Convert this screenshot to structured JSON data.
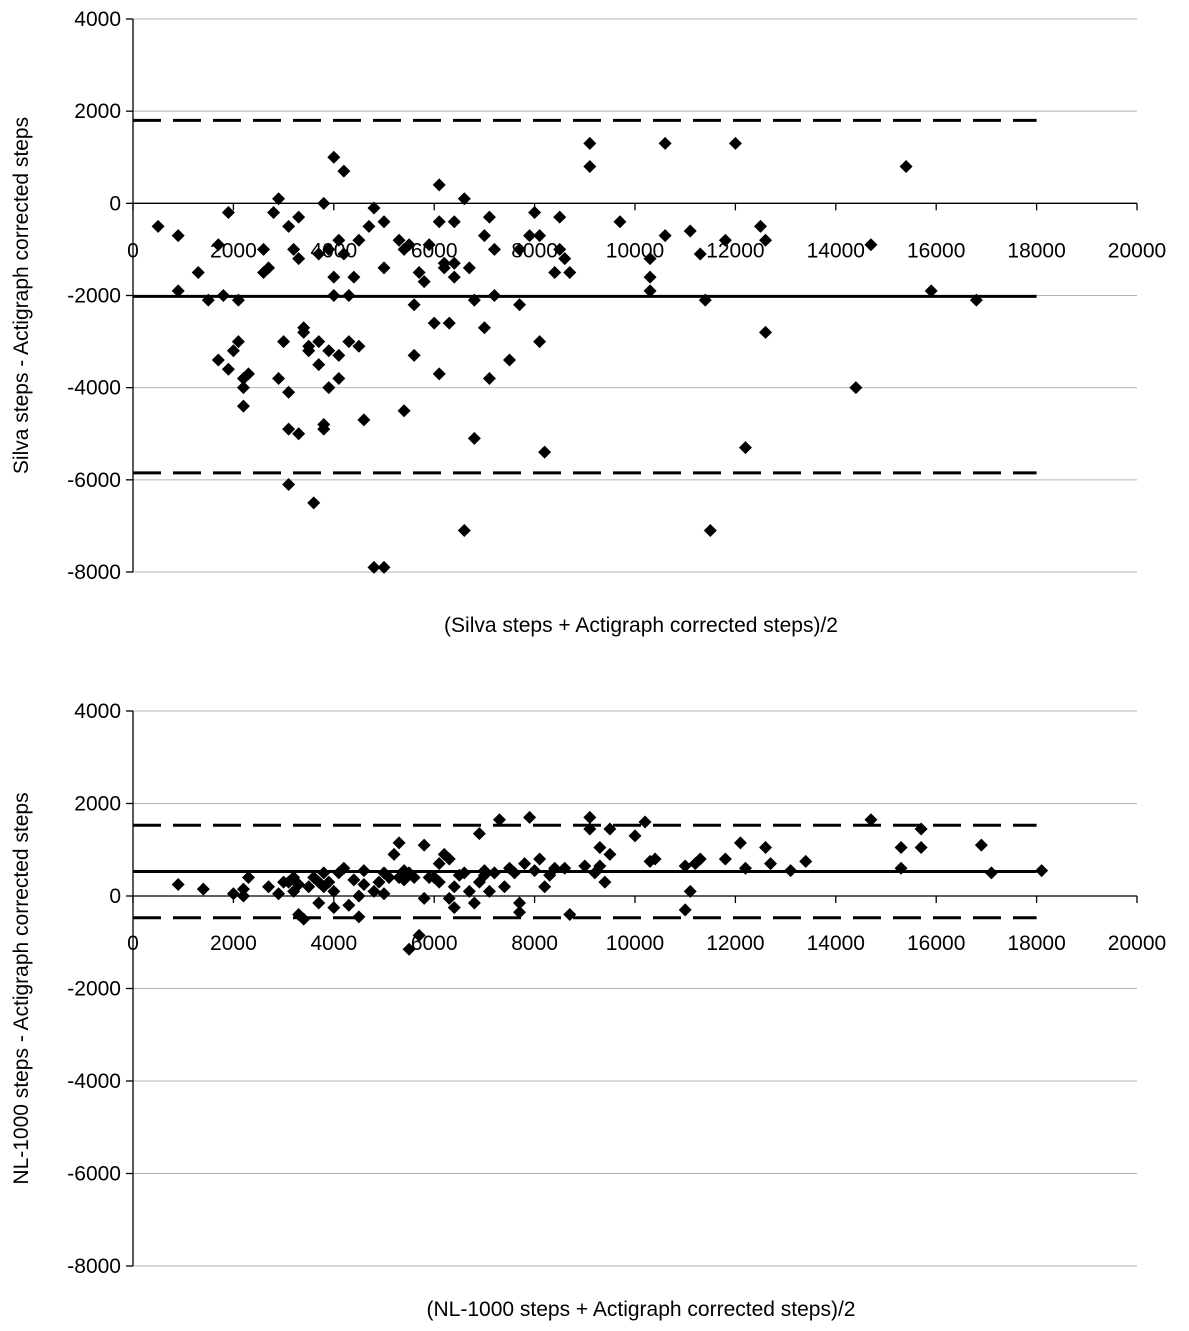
{
  "chart_data": [
    {
      "type": "scatter",
      "title": "",
      "xlabel": "(Silva steps + Actigraph corrected steps)/2",
      "ylabel": "Silva steps - Actigraph corrected steps",
      "xlim": [
        0,
        20000
      ],
      "ylim": [
        -8000,
        4000
      ],
      "x_ticks": [
        0,
        2000,
        4000,
        6000,
        8000,
        10000,
        12000,
        14000,
        16000,
        18000,
        20000
      ],
      "y_ticks": [
        4000,
        2000,
        0,
        -2000,
        -4000,
        -6000,
        -8000
      ],
      "x_tick_labels": [
        "0",
        "2000",
        "4000",
        "6000",
        "8000",
        "10000",
        "12000",
        "14000",
        "16000",
        "18000",
        "20000"
      ],
      "y_tick_labels": [
        "4000",
        "2000",
        "0",
        "-2000",
        "-4000",
        "-6000",
        "-8000"
      ],
      "grid": "horizontal",
      "legend": "none",
      "reference_lines": [
        {
          "style": "solid",
          "y": -2020,
          "x_range": [
            0,
            18000
          ]
        },
        {
          "style": "dashed",
          "y": 1800,
          "x_range": [
            0,
            18000
          ]
        },
        {
          "style": "dashed",
          "y": -5850,
          "x_range": [
            0,
            18000
          ]
        }
      ],
      "points": [
        [
          500,
          -500
        ],
        [
          900,
          -700
        ],
        [
          900,
          -1900
        ],
        [
          1300,
          -1500
        ],
        [
          1500,
          -2100
        ],
        [
          1700,
          -900
        ],
        [
          1700,
          -3400
        ],
        [
          1800,
          -2000
        ],
        [
          1900,
          -200
        ],
        [
          1900,
          -3600
        ],
        [
          2000,
          -3200
        ],
        [
          2100,
          -3000
        ],
        [
          2100,
          -2100
        ],
        [
          2200,
          -4000
        ],
        [
          2200,
          -3800
        ],
        [
          2200,
          -4400
        ],
        [
          2300,
          -3700
        ],
        [
          2600,
          -1000
        ],
        [
          2600,
          -1500
        ],
        [
          2700,
          -1400
        ],
        [
          2800,
          -200
        ],
        [
          2900,
          100
        ],
        [
          2900,
          -3800
        ],
        [
          3000,
          -3000
        ],
        [
          3100,
          -500
        ],
        [
          3100,
          -4900
        ],
        [
          3100,
          -6100
        ],
        [
          3100,
          -4100
        ],
        [
          3200,
          -1000
        ],
        [
          3300,
          -1200
        ],
        [
          3300,
          -300
        ],
        [
          3300,
          -5000
        ],
        [
          3400,
          -2700
        ],
        [
          3400,
          -2800
        ],
        [
          3500,
          -3100
        ],
        [
          3500,
          -3200
        ],
        [
          3600,
          -6500
        ],
        [
          3700,
          -1100
        ],
        [
          3700,
          -3000
        ],
        [
          3700,
          -3500
        ],
        [
          3800,
          0
        ],
        [
          3800,
          -4800
        ],
        [
          3800,
          -4900
        ],
        [
          3900,
          -1000
        ],
        [
          3900,
          -4000
        ],
        [
          3900,
          -3200
        ],
        [
          4000,
          1000
        ],
        [
          4000,
          -1600
        ],
        [
          4000,
          -2000
        ],
        [
          4100,
          -3800
        ],
        [
          4100,
          -800
        ],
        [
          4100,
          -3300
        ],
        [
          4200,
          700
        ],
        [
          4200,
          -1100
        ],
        [
          4300,
          -2000
        ],
        [
          4300,
          -3000
        ],
        [
          4400,
          -1600
        ],
        [
          4500,
          -3100
        ],
        [
          4500,
          -800
        ],
        [
          4600,
          -4700
        ],
        [
          4700,
          -500
        ],
        [
          4800,
          -100
        ],
        [
          4800,
          -7900
        ],
        [
          5000,
          -400
        ],
        [
          5000,
          -1400
        ],
        [
          5000,
          -7900
        ],
        [
          5300,
          -800
        ],
        [
          5400,
          -1000
        ],
        [
          5400,
          -4500
        ],
        [
          5500,
          -900
        ],
        [
          5600,
          -3300
        ],
        [
          5600,
          -2200
        ],
        [
          5700,
          -1500
        ],
        [
          5800,
          -1700
        ],
        [
          5900,
          -900
        ],
        [
          6000,
          -2600
        ],
        [
          6100,
          -400
        ],
        [
          6100,
          400
        ],
        [
          6100,
          -3700
        ],
        [
          6200,
          -1400
        ],
        [
          6200,
          -1300
        ],
        [
          6300,
          -2600
        ],
        [
          6400,
          -1300
        ],
        [
          6400,
          -1600
        ],
        [
          6400,
          -400
        ],
        [
          6600,
          -7100
        ],
        [
          6600,
          100
        ],
        [
          6700,
          -1400
        ],
        [
          6800,
          -2100
        ],
        [
          6800,
          -5100
        ],
        [
          7000,
          -700
        ],
        [
          7000,
          -2700
        ],
        [
          7100,
          -300
        ],
        [
          7100,
          -3800
        ],
        [
          7200,
          -2000
        ],
        [
          7200,
          -1000
        ],
        [
          7500,
          -3400
        ],
        [
          7700,
          -1000
        ],
        [
          7700,
          -2200
        ],
        [
          7900,
          -700
        ],
        [
          8000,
          -200
        ],
        [
          8100,
          -700
        ],
        [
          8100,
          -3000
        ],
        [
          8200,
          -5400
        ],
        [
          8400,
          -1500
        ],
        [
          8500,
          -1000
        ],
        [
          8500,
          -300
        ],
        [
          8600,
          -1200
        ],
        [
          8700,
          -1500
        ],
        [
          9100,
          1300
        ],
        [
          9100,
          800
        ],
        [
          9700,
          -400
        ],
        [
          10300,
          -1200
        ],
        [
          10300,
          -1600
        ],
        [
          10300,
          -1900
        ],
        [
          10600,
          1300
        ],
        [
          10600,
          -700
        ],
        [
          11100,
          -600
        ],
        [
          11300,
          -1100
        ],
        [
          11400,
          -2100
        ],
        [
          11500,
          -7100
        ],
        [
          11800,
          -800
        ],
        [
          12000,
          1300
        ],
        [
          12200,
          -5300
        ],
        [
          12500,
          -500
        ],
        [
          12600,
          -800
        ],
        [
          12600,
          -2800
        ],
        [
          14400,
          -4000
        ],
        [
          14700,
          -900
        ],
        [
          15400,
          800
        ],
        [
          15900,
          -1900
        ],
        [
          16800,
          -2100
        ]
      ]
    },
    {
      "type": "scatter",
      "title": "",
      "xlabel": "(NL-1000 steps + Actigraph corrected steps)/2",
      "ylabel": "NL-1000 steps - Actigraph corrected steps",
      "xlim": [
        0,
        20000
      ],
      "ylim": [
        -8000,
        4000
      ],
      "x_ticks": [
        0,
        2000,
        4000,
        6000,
        8000,
        10000,
        12000,
        14000,
        16000,
        18000,
        20000
      ],
      "y_ticks": [
        4000,
        2000,
        0,
        -2000,
        -4000,
        -6000,
        -8000
      ],
      "x_tick_labels": [
        "0",
        "2000",
        "4000",
        "6000",
        "8000",
        "10000",
        "12000",
        "14000",
        "16000",
        "18000",
        "20000"
      ],
      "y_tick_labels": [
        "4000",
        "2000",
        "0",
        "-2000",
        "-4000",
        "-6000",
        "-8000"
      ],
      "grid": "horizontal",
      "legend": "none",
      "reference_lines": [
        {
          "style": "solid",
          "y": 530,
          "x_range": [
            0,
            18000
          ]
        },
        {
          "style": "dashed",
          "y": 1530,
          "x_range": [
            0,
            18000
          ]
        },
        {
          "style": "dashed",
          "y": -470,
          "x_range": [
            0,
            18000
          ]
        }
      ],
      "points": [
        [
          900,
          250
        ],
        [
          1400,
          150
        ],
        [
          2000,
          50
        ],
        [
          2200,
          0
        ],
        [
          2200,
          150
        ],
        [
          2300,
          400
        ],
        [
          2700,
          200
        ],
        [
          2900,
          50
        ],
        [
          3000,
          300
        ],
        [
          3100,
          300
        ],
        [
          3200,
          100
        ],
        [
          3200,
          400
        ],
        [
          3300,
          -400
        ],
        [
          3300,
          250
        ],
        [
          3400,
          -500
        ],
        [
          3500,
          200
        ],
        [
          3600,
          400
        ],
        [
          3700,
          -150
        ],
        [
          3700,
          300
        ],
        [
          3800,
          200
        ],
        [
          3800,
          500
        ],
        [
          3900,
          300
        ],
        [
          4000,
          100
        ],
        [
          4000,
          -250
        ],
        [
          4100,
          500
        ],
        [
          4200,
          600
        ],
        [
          4300,
          -200
        ],
        [
          4400,
          350
        ],
        [
          4500,
          -450
        ],
        [
          4500,
          0
        ],
        [
          4600,
          550
        ],
        [
          4600,
          250
        ],
        [
          4800,
          100
        ],
        [
          4900,
          300
        ],
        [
          5000,
          500
        ],
        [
          5000,
          50
        ],
        [
          5100,
          400
        ],
        [
          5200,
          900
        ],
        [
          5300,
          1150
        ],
        [
          5300,
          400
        ],
        [
          5400,
          550
        ],
        [
          5400,
          350
        ],
        [
          5500,
          -1150
        ],
        [
          5500,
          500
        ],
        [
          5600,
          400
        ],
        [
          5700,
          -850
        ],
        [
          5800,
          1100
        ],
        [
          5800,
          -50
        ],
        [
          5900,
          400
        ],
        [
          6000,
          400
        ],
        [
          6100,
          700
        ],
        [
          6100,
          300
        ],
        [
          6200,
          900
        ],
        [
          6300,
          -50
        ],
        [
          6300,
          800
        ],
        [
          6400,
          -250
        ],
        [
          6400,
          200
        ],
        [
          6500,
          450
        ],
        [
          6600,
          500
        ],
        [
          6700,
          100
        ],
        [
          6800,
          -150
        ],
        [
          6900,
          1350
        ],
        [
          6900,
          300
        ],
        [
          7000,
          450
        ],
        [
          7000,
          550
        ],
        [
          7100,
          100
        ],
        [
          7200,
          500
        ],
        [
          7300,
          1650
        ],
        [
          7400,
          200
        ],
        [
          7500,
          600
        ],
        [
          7600,
          500
        ],
        [
          7700,
          -150
        ],
        [
          7700,
          -350
        ],
        [
          7800,
          700
        ],
        [
          7900,
          1700
        ],
        [
          8000,
          550
        ],
        [
          8100,
          800
        ],
        [
          8200,
          200
        ],
        [
          8300,
          450
        ],
        [
          8400,
          600
        ],
        [
          8600,
          600
        ],
        [
          8700,
          -400
        ],
        [
          9000,
          650
        ],
        [
          9100,
          1700
        ],
        [
          9100,
          1450
        ],
        [
          9200,
          500
        ],
        [
          9300,
          650
        ],
        [
          9300,
          1050
        ],
        [
          9400,
          300
        ],
        [
          9500,
          1450
        ],
        [
          9500,
          900
        ],
        [
          10000,
          1300
        ],
        [
          10200,
          1600
        ],
        [
          10300,
          750
        ],
        [
          10400,
          800
        ],
        [
          11000,
          650
        ],
        [
          11000,
          -300
        ],
        [
          11100,
          100
        ],
        [
          11200,
          700
        ],
        [
          11300,
          800
        ],
        [
          11800,
          800
        ],
        [
          12100,
          1150
        ],
        [
          12200,
          600
        ],
        [
          12600,
          1050
        ],
        [
          12700,
          700
        ],
        [
          13100,
          550
        ],
        [
          13400,
          750
        ],
        [
          14700,
          1650
        ],
        [
          15300,
          600
        ],
        [
          15300,
          1050
        ],
        [
          15700,
          1050
        ],
        [
          15700,
          1450
        ],
        [
          16900,
          1100
        ],
        [
          17100,
          500
        ],
        [
          18100,
          550
        ]
      ]
    }
  ]
}
